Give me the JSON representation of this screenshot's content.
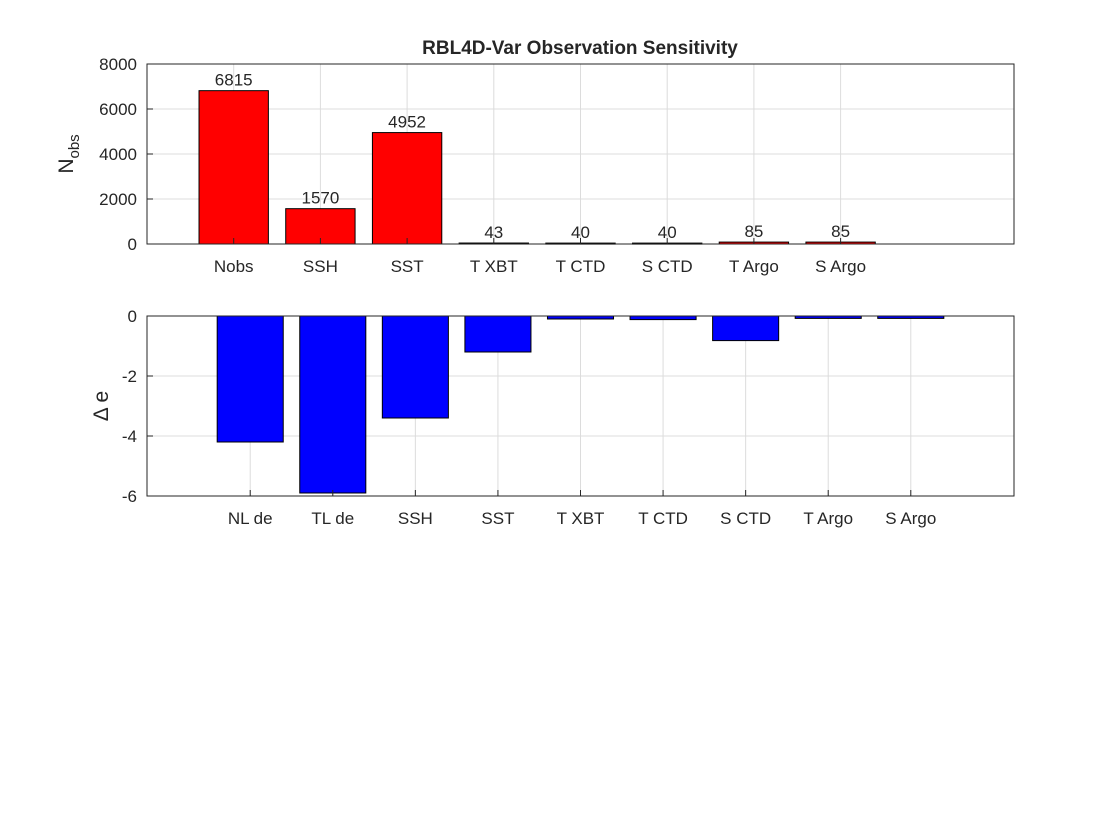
{
  "chart_data": [
    {
      "type": "bar",
      "title": "RBL4D-Var Observation Sensitivity",
      "ylabel": "N",
      "ylabel_sub": "obs",
      "categories": [
        "Nobs",
        "SSH",
        "SST",
        "T XBT",
        "T CTD",
        "S CTD",
        "T Argo",
        "S Argo"
      ],
      "values": [
        6815,
        1570,
        4952,
        43,
        40,
        40,
        85,
        85
      ],
      "data_labels": [
        "6815",
        "1570",
        "4952",
        "43",
        "40",
        "40",
        "85",
        "85"
      ],
      "ylim": [
        0,
        8000
      ],
      "yticks": [
        0,
        2000,
        4000,
        6000,
        8000
      ],
      "grid": true,
      "bar_color": "#ff0000"
    },
    {
      "type": "bar",
      "ylabel": "Δ e",
      "categories": [
        "NL de",
        "TL de",
        "SSH",
        "SST",
        "T XBT",
        "T CTD",
        "S CTD",
        "T Argo",
        "S Argo"
      ],
      "values": [
        -4.2,
        -5.9,
        -3.4,
        -1.2,
        -0.1,
        -0.12,
        -0.82,
        -0.08,
        -0.08
      ],
      "ylim": [
        -6,
        0
      ],
      "yticks": [
        -6,
        -4,
        -2,
        0
      ],
      "grid": true,
      "bar_color": "#0000ff"
    }
  ]
}
